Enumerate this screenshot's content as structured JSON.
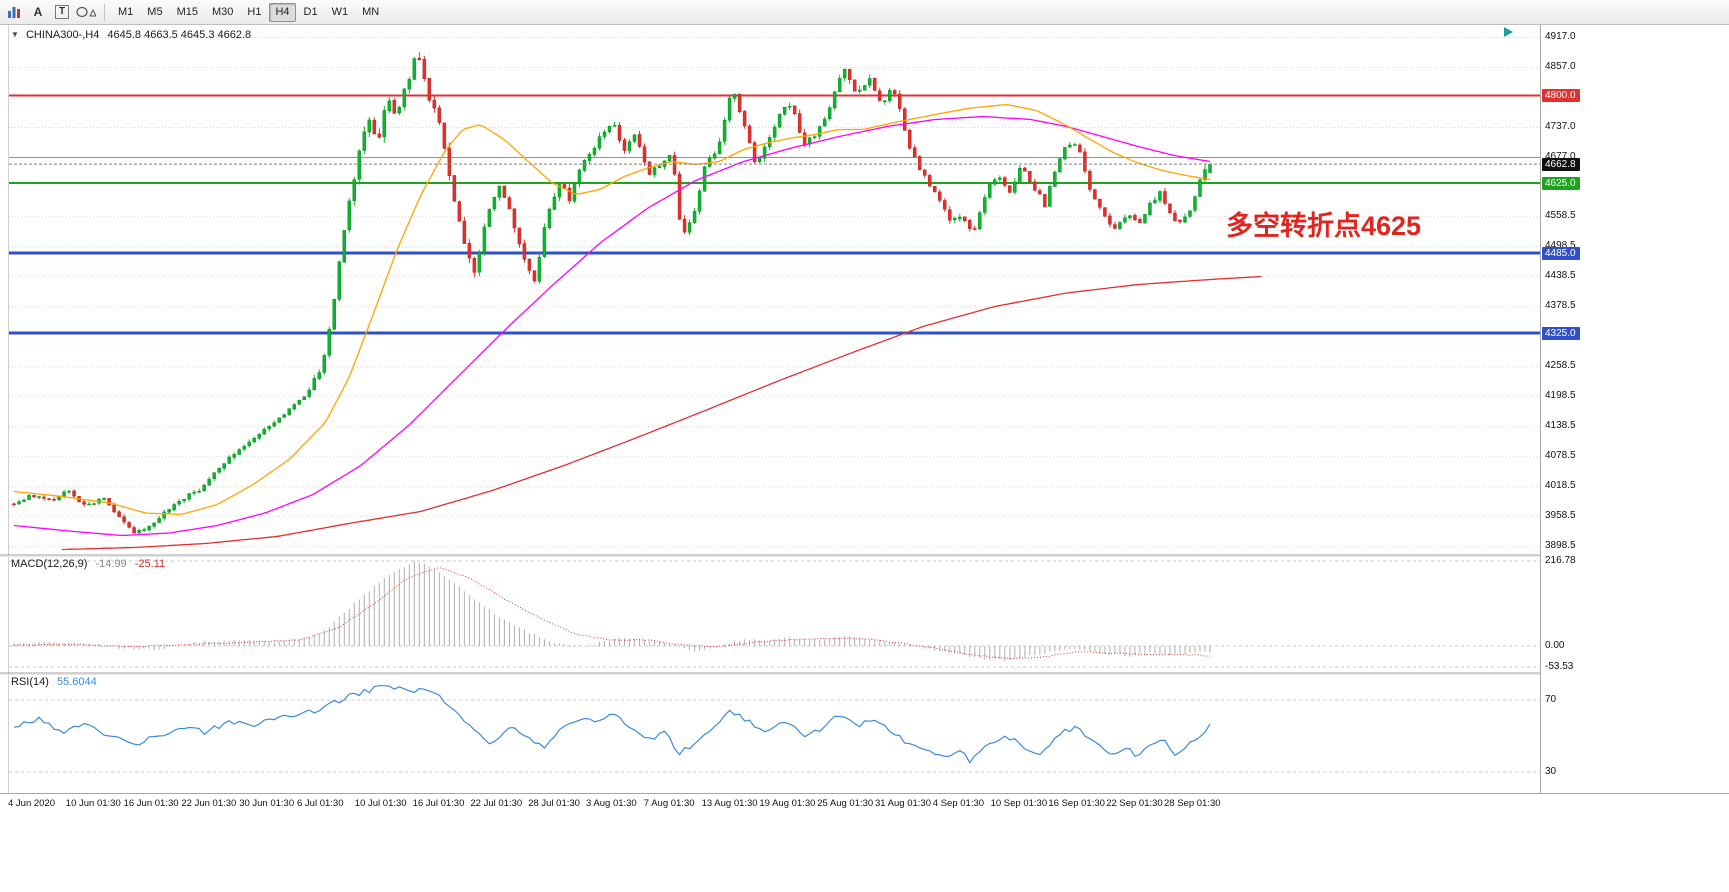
{
  "toolbar": {
    "tools": [
      {
        "name": "chart-objects-tool",
        "kind": "bars"
      },
      {
        "name": "text-label-tool",
        "glyph": "A"
      },
      {
        "name": "text-tool",
        "glyph": "T"
      },
      {
        "name": "shapes-tool",
        "kind": "shapes"
      }
    ],
    "timeframes": [
      "M1",
      "M5",
      "M15",
      "M30",
      "H1",
      "H4",
      "D1",
      "W1",
      "MN"
    ],
    "active_timeframe": "H4"
  },
  "chart": {
    "symbol_label": "CHINA300-,H4",
    "ohlc": "4645.8 4663.5 4645.3 4662.8",
    "annotation": {
      "text": "多空转折点4625",
      "color": "#e0251f"
    },
    "colors": {
      "candle_up": "#0db62f",
      "candle_up_stroke": "#0a8f25",
      "candle_down": "#e3302a",
      "candle_down_stroke": "#b52622",
      "ma_orange": "#ffa500",
      "ma_magenta": "#ff00ff",
      "ma_red": "#e03030",
      "grid": "#d8d8d8",
      "current_price_line": "#808080",
      "macd_hist": "#b0b0b0",
      "macd_signal": "#e03030",
      "rsi_line": "#3c8bd9"
    },
    "levels": [
      {
        "value": 4800.0,
        "label": "4800.0",
        "color": "#e03030",
        "width": 2,
        "type": "resistance"
      },
      {
        "value": 4676.0,
        "label": null,
        "color": "#7d96c8",
        "width": 1,
        "type": "minor"
      },
      {
        "value": 4662.8,
        "label": "4662.8",
        "color": "#101010",
        "width": 1,
        "type": "current-price"
      },
      {
        "value": 4625.0,
        "label": "4625.0",
        "color": "#1ca41c",
        "width": 2,
        "type": "pivot"
      },
      {
        "value": 4485.0,
        "label": "4485.0",
        "color": "#3050c8",
        "width": 3,
        "type": "support"
      },
      {
        "value": 4325.0,
        "label": "4325.0",
        "color": "#3050c8",
        "width": 3,
        "type": "support"
      }
    ],
    "price_ticks": [
      4917.0,
      4857.0,
      4737.0,
      4677.0,
      4558.5,
      4498.5,
      4438.5,
      4378.5,
      4258.5,
      4198.5,
      4138.5,
      4078.5,
      4018.5,
      3958.5,
      3898.5
    ]
  },
  "chart_data": {
    "type": "candlestick",
    "symbol": "CHINA300-",
    "timeframe": "H4",
    "ohlc_current": {
      "open": 4645.8,
      "high": 4663.5,
      "low": 4645.3,
      "close": 4662.8
    },
    "price_range": [
      3883,
      4941
    ],
    "num_bars": 240,
    "price_path_anchors": [
      [
        0.0,
        3985
      ],
      [
        0.015,
        4000
      ],
      [
        0.03,
        3990
      ],
      [
        0.045,
        4008
      ],
      [
        0.06,
        3978
      ],
      [
        0.075,
        3995
      ],
      [
        0.09,
        3952
      ],
      [
        0.1,
        3928
      ],
      [
        0.112,
        3938
      ],
      [
        0.125,
        3965
      ],
      [
        0.14,
        3992
      ],
      [
        0.155,
        4012
      ],
      [
        0.17,
        4055
      ],
      [
        0.185,
        4085
      ],
      [
        0.2,
        4115
      ],
      [
        0.215,
        4140
      ],
      [
        0.23,
        4170
      ],
      [
        0.245,
        4205
      ],
      [
        0.258,
        4260
      ],
      [
        0.268,
        4395
      ],
      [
        0.278,
        4560
      ],
      [
        0.288,
        4680
      ],
      [
        0.296,
        4755
      ],
      [
        0.304,
        4710
      ],
      [
        0.312,
        4792
      ],
      [
        0.32,
        4758
      ],
      [
        0.328,
        4820
      ],
      [
        0.337,
        4888
      ],
      [
        0.345,
        4812
      ],
      [
        0.355,
        4748
      ],
      [
        0.365,
        4632
      ],
      [
        0.375,
        4512
      ],
      [
        0.385,
        4448
      ],
      [
        0.395,
        4548
      ],
      [
        0.405,
        4618
      ],
      [
        0.415,
        4568
      ],
      [
        0.425,
        4482
      ],
      [
        0.435,
        4432
      ],
      [
        0.445,
        4548
      ],
      [
        0.455,
        4628
      ],
      [
        0.465,
        4592
      ],
      [
        0.475,
        4668
      ],
      [
        0.487,
        4705
      ],
      [
        0.5,
        4748
      ],
      [
        0.51,
        4692
      ],
      [
        0.52,
        4722
      ],
      [
        0.53,
        4645
      ],
      [
        0.54,
        4658
      ],
      [
        0.55,
        4692
      ],
      [
        0.558,
        4515
      ],
      [
        0.568,
        4562
      ],
      [
        0.578,
        4658
      ],
      [
        0.59,
        4702
      ],
      [
        0.6,
        4812
      ],
      [
        0.61,
        4752
      ],
      [
        0.62,
        4662
      ],
      [
        0.63,
        4702
      ],
      [
        0.64,
        4762
      ],
      [
        0.65,
        4788
      ],
      [
        0.66,
        4702
      ],
      [
        0.67,
        4722
      ],
      [
        0.68,
        4762
      ],
      [
        0.695,
        4858
      ],
      [
        0.705,
        4798
      ],
      [
        0.715,
        4838
      ],
      [
        0.725,
        4782
      ],
      [
        0.735,
        4818
      ],
      [
        0.748,
        4702
      ],
      [
        0.76,
        4642
      ],
      [
        0.772,
        4598
      ],
      [
        0.782,
        4552
      ],
      [
        0.792,
        4562
      ],
      [
        0.802,
        4522
      ],
      [
        0.812,
        4602
      ],
      [
        0.822,
        4642
      ],
      [
        0.832,
        4602
      ],
      [
        0.842,
        4662
      ],
      [
        0.852,
        4622
      ],
      [
        0.862,
        4582
      ],
      [
        0.872,
        4662
      ],
      [
        0.882,
        4708
      ],
      [
        0.89,
        4692
      ],
      [
        0.9,
        4612
      ],
      [
        0.91,
        4562
      ],
      [
        0.92,
        4532
      ],
      [
        0.93,
        4562
      ],
      [
        0.94,
        4542
      ],
      [
        0.95,
        4582
      ],
      [
        0.958,
        4605
      ],
      [
        0.966,
        4562
      ],
      [
        0.975,
        4548
      ],
      [
        0.984,
        4572
      ],
      [
        0.992,
        4630
      ],
      [
        1.0,
        4662.8
      ]
    ],
    "volatility_anchors": [
      [
        0,
        7
      ],
      [
        0.24,
        8
      ],
      [
        0.27,
        16
      ],
      [
        0.34,
        18
      ],
      [
        0.4,
        14
      ],
      [
        0.5,
        11
      ],
      [
        0.7,
        12
      ],
      [
        1,
        10
      ]
    ],
    "ma_orange_anchors": [
      [
        0.0,
        4008
      ],
      [
        0.04,
        3998
      ],
      [
        0.08,
        3985
      ],
      [
        0.11,
        3965
      ],
      [
        0.14,
        3962
      ],
      [
        0.17,
        3982
      ],
      [
        0.2,
        4022
      ],
      [
        0.23,
        4072
      ],
      [
        0.26,
        4145
      ],
      [
        0.28,
        4235
      ],
      [
        0.3,
        4360
      ],
      [
        0.32,
        4490
      ],
      [
        0.34,
        4600
      ],
      [
        0.36,
        4688
      ],
      [
        0.375,
        4732
      ],
      [
        0.39,
        4742
      ],
      [
        0.41,
        4712
      ],
      [
        0.43,
        4668
      ],
      [
        0.45,
        4625
      ],
      [
        0.47,
        4602
      ],
      [
        0.49,
        4612
      ],
      [
        0.51,
        4638
      ],
      [
        0.53,
        4655
      ],
      [
        0.55,
        4668
      ],
      [
        0.57,
        4662
      ],
      [
        0.59,
        4668
      ],
      [
        0.61,
        4692
      ],
      [
        0.63,
        4705
      ],
      [
        0.65,
        4715
      ],
      [
        0.67,
        4722
      ],
      [
        0.69,
        4732
      ],
      [
        0.71,
        4732
      ],
      [
        0.74,
        4748
      ],
      [
        0.77,
        4762
      ],
      [
        0.8,
        4775
      ],
      [
        0.83,
        4782
      ],
      [
        0.855,
        4770
      ],
      [
        0.88,
        4740
      ],
      [
        0.9,
        4712
      ],
      [
        0.92,
        4685
      ],
      [
        0.94,
        4665
      ],
      [
        0.96,
        4650
      ],
      [
        0.98,
        4640
      ],
      [
        1.0,
        4632
      ]
    ],
    "ma_magenta_anchors": [
      [
        0.0,
        3940
      ],
      [
        0.05,
        3928
      ],
      [
        0.09,
        3920
      ],
      [
        0.13,
        3925
      ],
      [
        0.17,
        3940
      ],
      [
        0.21,
        3965
      ],
      [
        0.25,
        4002
      ],
      [
        0.29,
        4060
      ],
      [
        0.33,
        4140
      ],
      [
        0.37,
        4235
      ],
      [
        0.41,
        4330
      ],
      [
        0.45,
        4420
      ],
      [
        0.49,
        4505
      ],
      [
        0.53,
        4575
      ],
      [
        0.57,
        4630
      ],
      [
        0.61,
        4668
      ],
      [
        0.65,
        4695
      ],
      [
        0.69,
        4718
      ],
      [
        0.73,
        4738
      ],
      [
        0.77,
        4752
      ],
      [
        0.81,
        4758
      ],
      [
        0.85,
        4752
      ],
      [
        0.88,
        4738
      ],
      [
        0.91,
        4718
      ],
      [
        0.94,
        4698
      ],
      [
        0.97,
        4680
      ],
      [
        1.0,
        4668
      ]
    ],
    "ma_red_anchors": [
      [
        0.04,
        3892
      ],
      [
        0.1,
        3896
      ],
      [
        0.16,
        3904
      ],
      [
        0.22,
        3918
      ],
      [
        0.28,
        3944
      ],
      [
        0.34,
        3968
      ],
      [
        0.4,
        4010
      ],
      [
        0.46,
        4060
      ],
      [
        0.52,
        4115
      ],
      [
        0.58,
        4172
      ],
      [
        0.64,
        4230
      ],
      [
        0.7,
        4285
      ],
      [
        0.76,
        4338
      ],
      [
        0.82,
        4378
      ],
      [
        0.88,
        4405
      ],
      [
        0.94,
        4422
      ],
      [
        1.0,
        4432
      ],
      [
        1.043,
        4438
      ]
    ],
    "macd": {
      "label": "MACD(12,26,9)",
      "display_main": "-14.99",
      "display_signal": "-25.11",
      "axis_ticks": [
        216.78,
        0.0,
        -53.53
      ],
      "axis_labels": [
        "216.78",
        "0.00",
        "-53.53"
      ],
      "hist_anchors": [
        [
          0.0,
          4
        ],
        [
          0.03,
          10
        ],
        [
          0.06,
          6
        ],
        [
          0.09,
          -6
        ],
        [
          0.12,
          -10
        ],
        [
          0.15,
          8
        ],
        [
          0.18,
          14
        ],
        [
          0.21,
          12
        ],
        [
          0.24,
          18
        ],
        [
          0.26,
          40
        ],
        [
          0.28,
          95
        ],
        [
          0.3,
          150
        ],
        [
          0.32,
          195
        ],
        [
          0.335,
          215
        ],
        [
          0.35,
          200
        ],
        [
          0.37,
          158
        ],
        [
          0.39,
          108
        ],
        [
          0.41,
          66
        ],
        [
          0.43,
          36
        ],
        [
          0.45,
          12
        ],
        [
          0.47,
          -6
        ],
        [
          0.49,
          8
        ],
        [
          0.51,
          22
        ],
        [
          0.53,
          14
        ],
        [
          0.55,
          4
        ],
        [
          0.57,
          -14
        ],
        [
          0.59,
          2
        ],
        [
          0.61,
          18
        ],
        [
          0.63,
          16
        ],
        [
          0.65,
          22
        ],
        [
          0.67,
          16
        ],
        [
          0.69,
          26
        ],
        [
          0.71,
          18
        ],
        [
          0.73,
          12
        ],
        [
          0.75,
          2
        ],
        [
          0.77,
          -10
        ],
        [
          0.79,
          -22
        ],
        [
          0.81,
          -34
        ],
        [
          0.83,
          -36
        ],
        [
          0.85,
          -26
        ],
        [
          0.87,
          -12
        ],
        [
          0.89,
          -8
        ],
        [
          0.91,
          -20
        ],
        [
          0.93,
          -26
        ],
        [
          0.95,
          -18
        ],
        [
          0.97,
          -22
        ],
        [
          0.985,
          -18
        ],
        [
          1.0,
          -15
        ]
      ],
      "signal_anchors": [
        [
          0.0,
          2
        ],
        [
          0.05,
          4
        ],
        [
          0.1,
          -2
        ],
        [
          0.15,
          4
        ],
        [
          0.2,
          10
        ],
        [
          0.24,
          16
        ],
        [
          0.27,
          45
        ],
        [
          0.3,
          105
        ],
        [
          0.33,
          175
        ],
        [
          0.355,
          200
        ],
        [
          0.38,
          175
        ],
        [
          0.41,
          120
        ],
        [
          0.44,
          70
        ],
        [
          0.47,
          30
        ],
        [
          0.5,
          14
        ],
        [
          0.53,
          16
        ],
        [
          0.56,
          2
        ],
        [
          0.59,
          -2
        ],
        [
          0.62,
          10
        ],
        [
          0.65,
          16
        ],
        [
          0.68,
          20
        ],
        [
          0.71,
          18
        ],
        [
          0.74,
          8
        ],
        [
          0.77,
          -6
        ],
        [
          0.8,
          -22
        ],
        [
          0.83,
          -32
        ],
        [
          0.86,
          -28
        ],
        [
          0.89,
          -14
        ],
        [
          0.92,
          -18
        ],
        [
          0.95,
          -22
        ],
        [
          0.98,
          -22
        ],
        [
          1.0,
          -25
        ]
      ]
    },
    "rsi": {
      "label": "RSI(14)",
      "display_value": "55.6044",
      "levels": [
        70,
        30
      ],
      "anchors": [
        [
          0.0,
          55
        ],
        [
          0.02,
          60
        ],
        [
          0.04,
          52
        ],
        [
          0.06,
          58
        ],
        [
          0.08,
          50
        ],
        [
          0.1,
          45
        ],
        [
          0.12,
          50
        ],
        [
          0.14,
          55
        ],
        [
          0.16,
          52
        ],
        [
          0.18,
          58
        ],
        [
          0.2,
          56
        ],
        [
          0.22,
          60
        ],
        [
          0.24,
          62
        ],
        [
          0.26,
          66
        ],
        [
          0.28,
          72
        ],
        [
          0.3,
          76
        ],
        [
          0.315,
          78
        ],
        [
          0.33,
          74
        ],
        [
          0.345,
          77
        ],
        [
          0.36,
          70
        ],
        [
          0.375,
          60
        ],
        [
          0.39,
          50
        ],
        [
          0.4,
          46
        ],
        [
          0.415,
          56
        ],
        [
          0.43,
          48
        ],
        [
          0.445,
          44
        ],
        [
          0.46,
          55
        ],
        [
          0.475,
          60
        ],
        [
          0.49,
          58
        ],
        [
          0.5,
          62
        ],
        [
          0.515,
          55
        ],
        [
          0.53,
          48
        ],
        [
          0.545,
          52
        ],
        [
          0.555,
          40
        ],
        [
          0.57,
          46
        ],
        [
          0.585,
          55
        ],
        [
          0.6,
          64
        ],
        [
          0.615,
          58
        ],
        [
          0.63,
          52
        ],
        [
          0.645,
          58
        ],
        [
          0.66,
          50
        ],
        [
          0.675,
          54
        ],
        [
          0.69,
          62
        ],
        [
          0.705,
          56
        ],
        [
          0.72,
          60
        ],
        [
          0.735,
          52
        ],
        [
          0.75,
          45
        ],
        [
          0.765,
          42
        ],
        [
          0.78,
          38
        ],
        [
          0.79,
          42
        ],
        [
          0.8,
          36
        ],
        [
          0.815,
          46
        ],
        [
          0.83,
          50
        ],
        [
          0.845,
          44
        ],
        [
          0.86,
          40
        ],
        [
          0.875,
          52
        ],
        [
          0.89,
          55
        ],
        [
          0.9,
          48
        ],
        [
          0.915,
          40
        ],
        [
          0.93,
          44
        ],
        [
          0.94,
          38
        ],
        [
          0.95,
          45
        ],
        [
          0.96,
          48
        ],
        [
          0.97,
          40
        ],
        [
          0.98,
          44
        ],
        [
          0.99,
          48
        ],
        [
          1.0,
          55.6
        ]
      ]
    },
    "time_labels": [
      "4 Jun 2020",
      "10 Jun 01:30",
      "16 Jun 01:30",
      "22 Jun 01:30",
      "30 Jun 01:30",
      "6 Jul 01:30",
      "10 Jul 01:30",
      "16 Jul 01:30",
      "22 Jul 01:30",
      "28 Jul 01:30",
      "3 Aug 01:30",
      "7 Aug 01:30",
      "13 Aug 01:30",
      "19 Aug 01:30",
      "25 Aug 01:30",
      "31 Aug 01:30",
      "4 Sep 01:30",
      "10 Sep 01:30",
      "16 Sep 01:30",
      "22 Sep 01:30",
      "28 Sep 01:30"
    ]
  }
}
